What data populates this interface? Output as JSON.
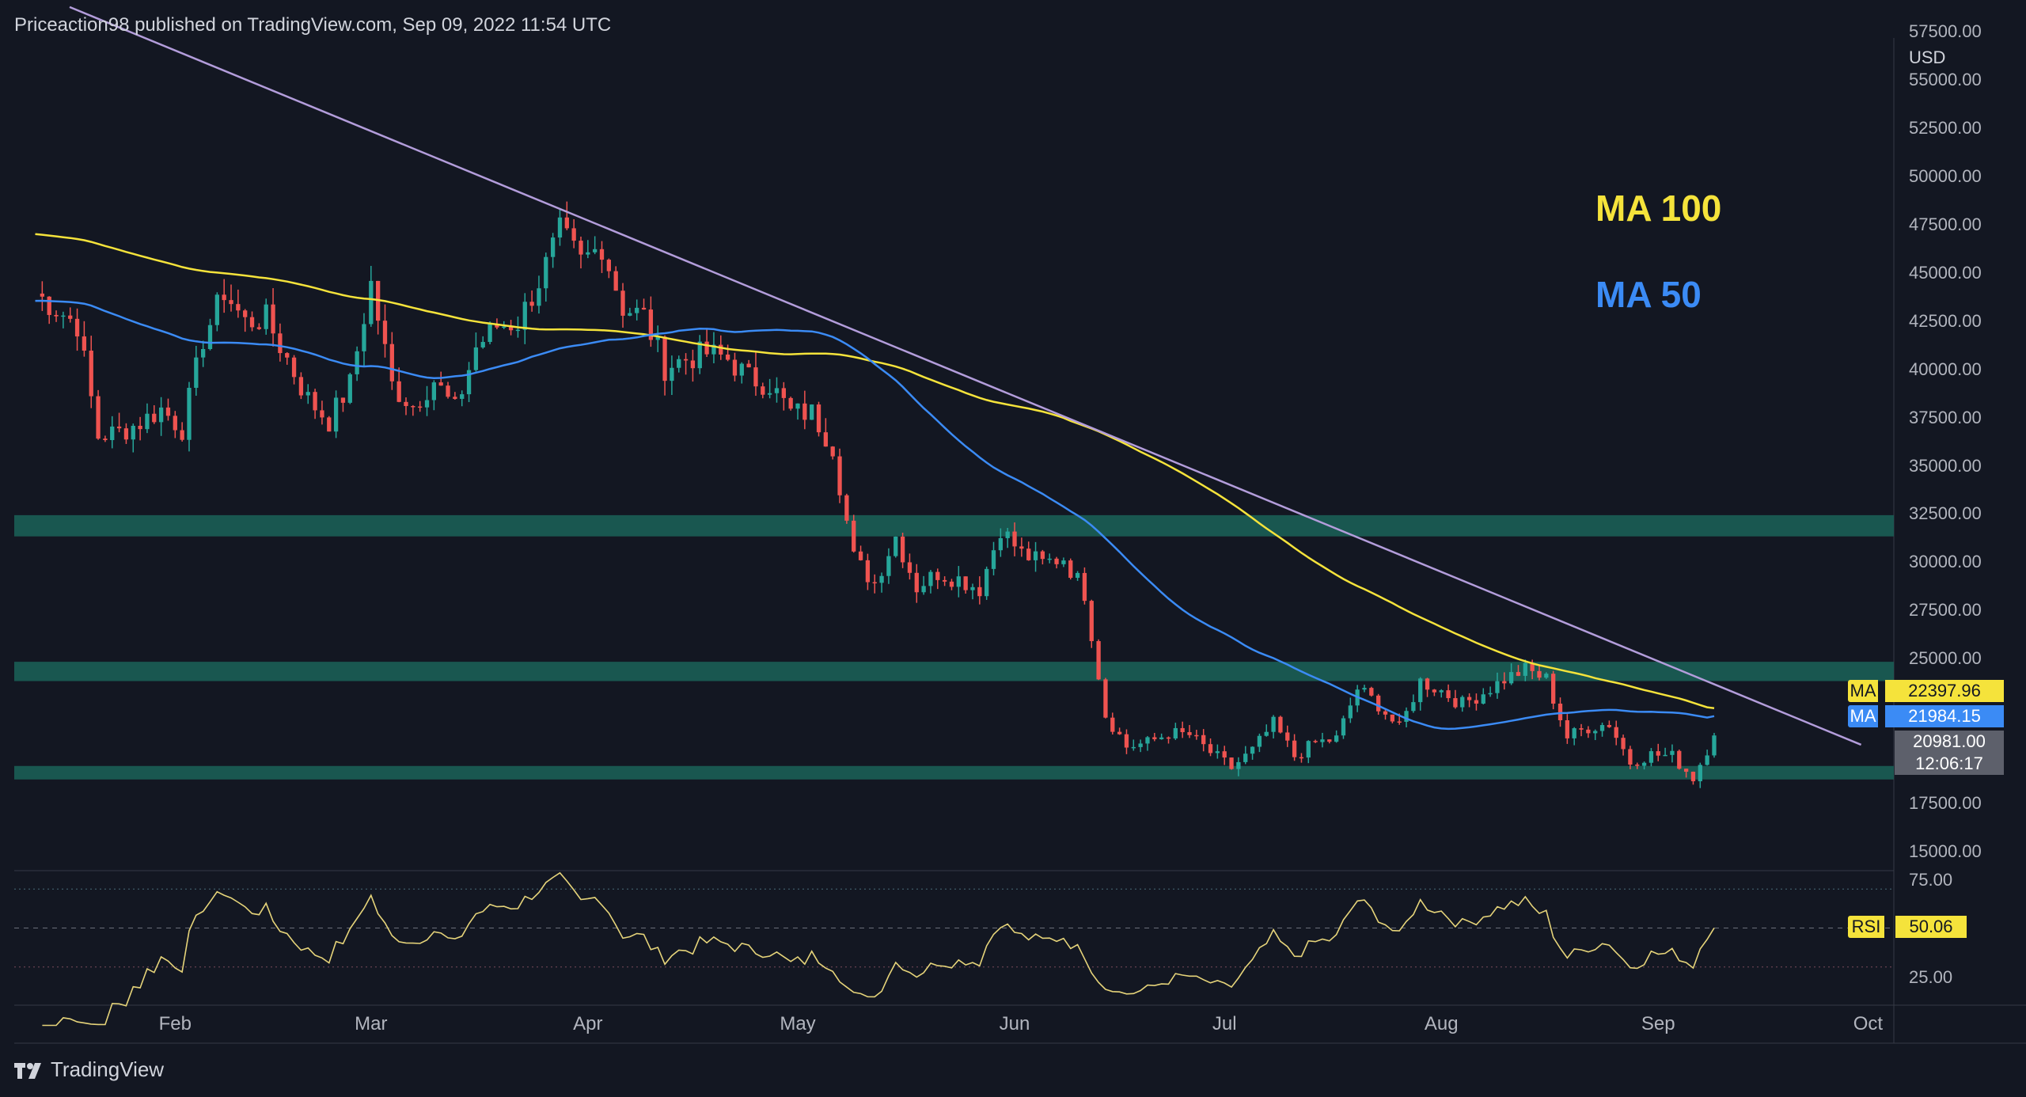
{
  "header": {
    "publisher": "Priceaction98 published on TradingView.com, Sep 09, 2022 11:54 UTC"
  },
  "brand": {
    "name": "TradingView"
  },
  "legend": {
    "ma100": "MA 100",
    "ma50": "MA 50",
    "ma100_color": "#f5e33b",
    "ma50_color": "#3b8bf5"
  },
  "price_axis": {
    "currency": "USD",
    "ticks": [
      "57500.00",
      "55000.00",
      "52500.00",
      "50000.00",
      "47500.00",
      "45000.00",
      "42500.00",
      "40000.00",
      "37500.00",
      "35000.00",
      "32500.00",
      "30000.00",
      "27500.00",
      "25000.00",
      "17500.00",
      "15000.00"
    ]
  },
  "rsi_axis": {
    "ticks": [
      "75.00",
      "25.00"
    ]
  },
  "tags": {
    "ma100": {
      "name": "MA",
      "value": "22397.96"
    },
    "ma50": {
      "name": "MA",
      "value": "21984.15"
    },
    "price": {
      "value": "20981.00",
      "countdown": "12:06:17"
    },
    "rsi": {
      "name": "RSI",
      "value": "50.06"
    }
  },
  "colors": {
    "up": "#26a69a",
    "down": "#ef5350",
    "zone": "#1b5e55",
    "trendline": "#b39ddb",
    "rsi": "#e6d47a",
    "background": "#131722"
  },
  "chart_data": {
    "type": "candlestick",
    "symbol_currency": "USD",
    "x_labels": [
      "Feb",
      "Mar",
      "Apr",
      "May",
      "Jun",
      "Jul",
      "Aug",
      "Sep",
      "Oct"
    ],
    "ylim": [
      13500,
      58000
    ],
    "close_series": [
      [
        "2022-01-12",
        43900
      ],
      [
        "2022-01-15",
        43100
      ],
      [
        "2022-01-18",
        42300
      ],
      [
        "2022-01-21",
        36500
      ],
      [
        "2022-01-24",
        36700
      ],
      [
        "2022-01-27",
        37200
      ],
      [
        "2022-01-30",
        37900
      ],
      [
        "2022-02-02",
        36900
      ],
      [
        "2022-02-05",
        41500
      ],
      [
        "2022-02-08",
        44000
      ],
      [
        "2022-02-11",
        42400
      ],
      [
        "2022-02-14",
        42600
      ],
      [
        "2022-02-17",
        40500
      ],
      [
        "2022-02-20",
        38400
      ],
      [
        "2022-02-23",
        37300
      ],
      [
        "2022-02-26",
        39200
      ],
      [
        "2022-03-01",
        44400
      ],
      [
        "2022-03-04",
        39100
      ],
      [
        "2022-03-07",
        38100
      ],
      [
        "2022-03-10",
        39400
      ],
      [
        "2022-03-13",
        37800
      ],
      [
        "2022-03-16",
        41100
      ],
      [
        "2022-03-19",
        42200
      ],
      [
        "2022-03-22",
        42400
      ],
      [
        "2022-03-25",
        44500
      ],
      [
        "2022-03-28",
        47100
      ],
      [
        "2022-03-31",
        45500
      ],
      [
        "2022-04-03",
        46400
      ],
      [
        "2022-04-06",
        43200
      ],
      [
        "2022-04-09",
        42700
      ],
      [
        "2022-04-12",
        40100
      ],
      [
        "2022-04-15",
        40500
      ],
      [
        "2022-04-18",
        40800
      ],
      [
        "2022-04-21",
        40500
      ],
      [
        "2022-04-24",
        39500
      ],
      [
        "2022-04-27",
        39200
      ],
      [
        "2022-04-30",
        37700
      ],
      [
        "2022-05-03",
        37700
      ],
      [
        "2022-05-06",
        36000
      ],
      [
        "2022-05-09",
        30100
      ],
      [
        "2022-05-12",
        28900
      ],
      [
        "2022-05-15",
        31300
      ],
      [
        "2022-05-18",
        28700
      ],
      [
        "2022-05-21",
        29400
      ],
      [
        "2022-05-24",
        29100
      ],
      [
        "2022-05-27",
        28600
      ],
      [
        "2022-05-30",
        31700
      ],
      [
        "2022-06-02",
        30400
      ],
      [
        "2022-06-05",
        29900
      ],
      [
        "2022-06-08",
        30200
      ],
      [
        "2022-06-11",
        28400
      ],
      [
        "2022-06-14",
        22100
      ],
      [
        "2022-06-17",
        20400
      ],
      [
        "2022-06-20",
        20600
      ],
      [
        "2022-06-23",
        21100
      ],
      [
        "2022-06-26",
        21000
      ],
      [
        "2022-06-29",
        20100
      ],
      [
        "2022-07-02",
        19300
      ],
      [
        "2022-07-05",
        20200
      ],
      [
        "2022-07-08",
        21600
      ],
      [
        "2022-07-11",
        19900
      ],
      [
        "2022-07-14",
        20600
      ],
      [
        "2022-07-17",
        20800
      ],
      [
        "2022-07-20",
        23400
      ],
      [
        "2022-07-23",
        22600
      ],
      [
        "2022-07-26",
        21300
      ],
      [
        "2022-07-29",
        23800
      ],
      [
        "2022-08-01",
        23300
      ],
      [
        "2022-08-04",
        22600
      ],
      [
        "2022-08-07",
        23200
      ],
      [
        "2022-08-10",
        23900
      ],
      [
        "2022-08-13",
        24400
      ],
      [
        "2022-08-16",
        23900
      ],
      [
        "2022-08-19",
        20900
      ],
      [
        "2022-08-22",
        21400
      ],
      [
        "2022-08-25",
        21600
      ],
      [
        "2022-08-28",
        19600
      ],
      [
        "2022-08-31",
        20000
      ],
      [
        "2022-09-03",
        19900
      ],
      [
        "2022-09-06",
        18800
      ],
      [
        "2022-09-09",
        20981
      ]
    ],
    "ma100_last": 22397.96,
    "ma50_last": 21984.15,
    "support_resistance_zones": [
      [
        31300,
        32400
      ],
      [
        23800,
        24800
      ],
      [
        18700,
        19400
      ]
    ],
    "trendline": [
      [
        "2022-01-09",
        58000
      ],
      [
        "2022-09-30",
        20500
      ]
    ],
    "rsi": {
      "last": 50.06,
      "levels": [
        70,
        50,
        30
      ],
      "axis_ticks": [
        75,
        25
      ]
    }
  }
}
